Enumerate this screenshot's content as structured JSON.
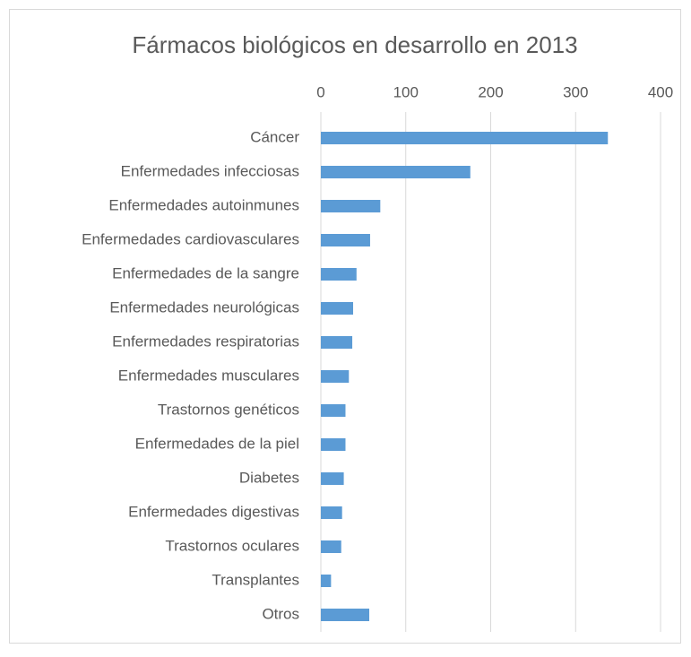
{
  "chart_data": {
    "type": "bar",
    "orientation": "horizontal",
    "title": "Fármacos biológicos en desarrollo en 2013",
    "categories": [
      "Cáncer",
      "Enfermedades infecciosas",
      "Enfermedades autoinmunes",
      "Enfermedades cardiovasculares",
      "Enfermedades de la sangre",
      "Enfermedades neurológicas",
      "Enfermedades respiratorias",
      "Enfermedades musculares",
      "Trastornos genéticos",
      "Enfermedades de la piel",
      "Diabetes",
      "Enfermedades digestivas",
      "Trastornos oculares",
      "Transplantes",
      "Otros"
    ],
    "values": [
      338,
      176,
      70,
      58,
      42,
      38,
      37,
      33,
      29,
      29,
      27,
      25,
      24,
      12,
      57
    ],
    "color": "#5b9bd5",
    "xlim": [
      0,
      400
    ],
    "xticks": [
      0,
      100,
      200,
      300,
      400
    ],
    "grid": true
  }
}
